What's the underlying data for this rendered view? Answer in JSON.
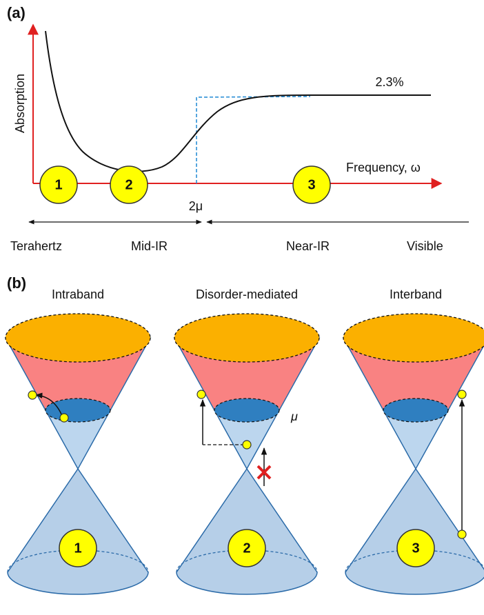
{
  "panel_a": {
    "label": "(a)",
    "y_axis_label": "Absorption",
    "x_axis_label": "Frequency, ω",
    "plateau_label": "2.3%",
    "threshold_label": "2μ",
    "markers": [
      "1",
      "2",
      "3"
    ],
    "regions": [
      "Terahertz",
      "Mid-IR",
      "Near-IR",
      "Visible"
    ]
  },
  "panel_b": {
    "label": "(b)",
    "fermi_label": "μ",
    "cones": [
      {
        "title": "Intraband",
        "marker": "1"
      },
      {
        "title": "Disorder-mediated",
        "marker": "2"
      },
      {
        "title": "Interband",
        "marker": "3"
      }
    ]
  }
}
